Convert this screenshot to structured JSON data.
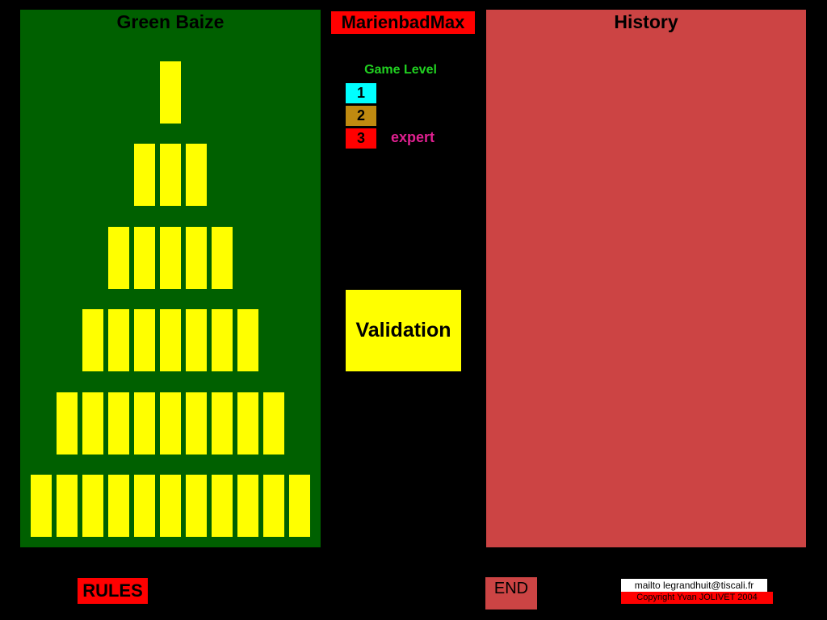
{
  "baize": {
    "title": "Green Baize",
    "color": "#006000",
    "stick_color": "#ffff00",
    "rows": [
      1,
      3,
      5,
      7,
      9,
      11
    ]
  },
  "app": {
    "title": "MarienbadMax",
    "title_bg": "#ff0000"
  },
  "level": {
    "heading": "Game Level",
    "buttons": [
      {
        "label": "1",
        "color": "#00ffff"
      },
      {
        "label": "2",
        "color": "#c08a10"
      },
      {
        "label": "3",
        "color": "#ff0000"
      }
    ],
    "selected_label": "expert"
  },
  "validation": {
    "label": "Validation"
  },
  "history": {
    "title": "History",
    "color": "#cc4444"
  },
  "footer": {
    "rules": "RULES",
    "end": "END",
    "mailto": "mailto legrandhuit@tiscali.fr",
    "copyright": "Copyright Yvan JOLIVET 2004"
  }
}
